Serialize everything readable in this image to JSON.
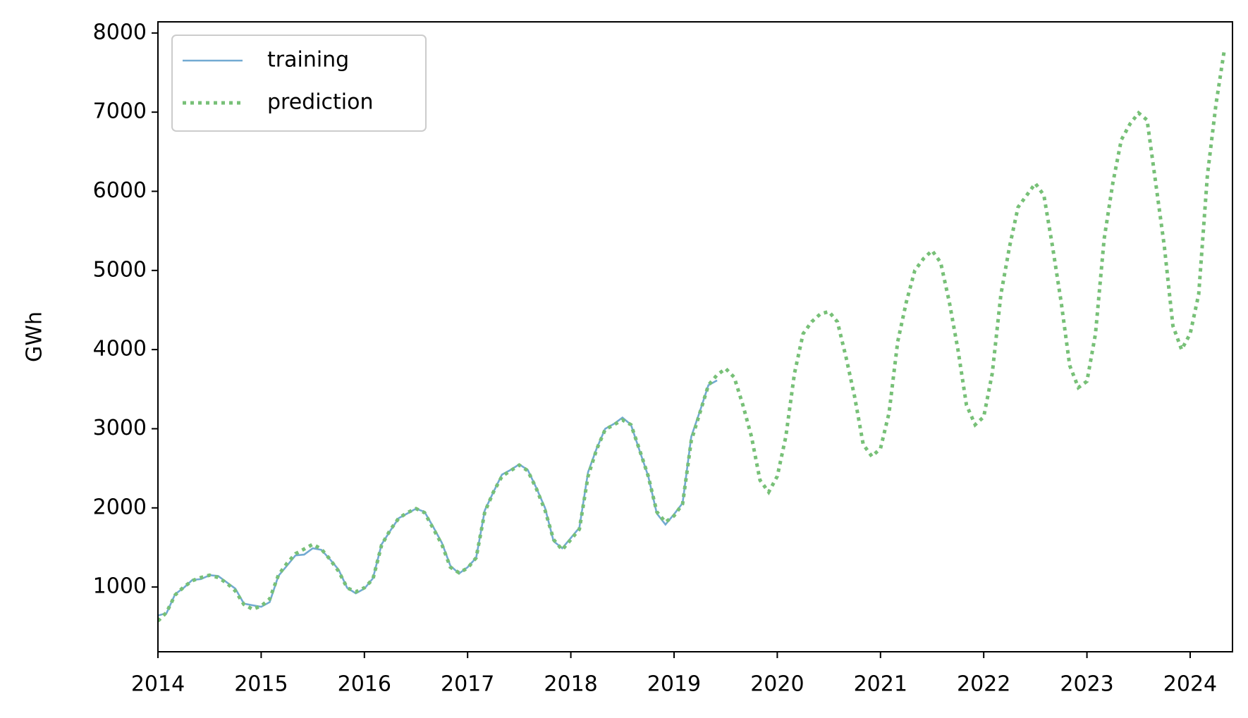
{
  "chart_data": {
    "type": "line",
    "y_label": "GWh",
    "legend": "upper left",
    "xlim": [
      2014,
      2024.41
    ],
    "xticks": [
      2014,
      2015,
      2016,
      2017,
      2018,
      2019,
      2020,
      2021,
      2022,
      2023,
      2024
    ],
    "ylim": [
      182,
      8141
    ],
    "yticks": [
      1000,
      2000,
      3000,
      4000,
      5000,
      6000,
      7000,
      8000
    ],
    "series": [
      {
        "name": "training",
        "color": "#72aad2",
        "dash": false,
        "x": [
          2014,
          2014.083,
          2014.167,
          2014.25,
          2014.333,
          2014.417,
          2014.5,
          2014.583,
          2014.667,
          2014.75,
          2014.833,
          2014.917,
          2015,
          2015.083,
          2015.167,
          2015.25,
          2015.333,
          2015.417,
          2015.5,
          2015.583,
          2015.667,
          2015.75,
          2015.833,
          2015.917,
          2016,
          2016.083,
          2016.167,
          2016.25,
          2016.333,
          2016.417,
          2016.5,
          2016.583,
          2016.667,
          2016.75,
          2016.833,
          2016.917,
          2017,
          2017.083,
          2017.167,
          2017.25,
          2017.333,
          2017.417,
          2017.5,
          2017.583,
          2017.667,
          2017.75,
          2017.833,
          2017.917,
          2018,
          2018.083,
          2018.167,
          2018.25,
          2018.333,
          2018.417,
          2018.5,
          2018.583,
          2018.667,
          2018.75,
          2018.833,
          2018.917,
          2019,
          2019.083,
          2019.167,
          2019.25,
          2019.333,
          2019.417
        ],
        "values": [
          640,
          670,
          910,
          990,
          1090,
          1100,
          1150,
          1140,
          1060,
          980,
          790,
          770,
          750,
          810,
          1140,
          1270,
          1400,
          1410,
          1490,
          1470,
          1350,
          1220,
          990,
          920,
          980,
          1110,
          1540,
          1710,
          1870,
          1930,
          1990,
          1950,
          1760,
          1560,
          1270,
          1170,
          1250,
          1370,
          1970,
          2200,
          2420,
          2480,
          2550,
          2480,
          2250,
          2000,
          1580,
          1490,
          1620,
          1750,
          2450,
          2750,
          3000,
          3060,
          3140,
          3050,
          2720,
          2400,
          1930,
          1790,
          1920,
          2060,
          2900,
          3220,
          3550,
          3610
        ]
      },
      {
        "name": "prediction",
        "color": "#77c077",
        "dash": true,
        "x": [
          2014,
          2014.083,
          2014.167,
          2014.25,
          2014.333,
          2014.417,
          2014.5,
          2014.583,
          2014.667,
          2014.75,
          2014.833,
          2014.917,
          2015,
          2015.083,
          2015.167,
          2015.25,
          2015.333,
          2015.417,
          2015.5,
          2015.583,
          2015.667,
          2015.75,
          2015.833,
          2015.917,
          2016,
          2016.083,
          2016.167,
          2016.25,
          2016.333,
          2016.417,
          2016.5,
          2016.583,
          2016.667,
          2016.75,
          2016.833,
          2016.917,
          2017,
          2017.083,
          2017.167,
          2017.25,
          2017.333,
          2017.417,
          2017.5,
          2017.583,
          2017.667,
          2017.75,
          2017.833,
          2017.917,
          2018,
          2018.083,
          2018.167,
          2018.25,
          2018.333,
          2018.417,
          2018.5,
          2018.583,
          2018.667,
          2018.75,
          2018.833,
          2018.917,
          2019,
          2019.083,
          2019.167,
          2019.25,
          2019.333,
          2019.417,
          2019.5,
          2019.583,
          2019.667,
          2019.75,
          2019.833,
          2019.917,
          2020,
          2020.083,
          2020.167,
          2020.25,
          2020.333,
          2020.417,
          2020.5,
          2020.583,
          2020.667,
          2020.75,
          2020.833,
          2020.917,
          2021,
          2021.083,
          2021.167,
          2021.25,
          2021.333,
          2021.417,
          2021.5,
          2021.583,
          2021.667,
          2021.75,
          2021.833,
          2021.917,
          2022,
          2022.083,
          2022.167,
          2022.25,
          2022.333,
          2022.417,
          2022.5,
          2022.583,
          2022.667,
          2022.75,
          2022.833,
          2022.917,
          2023,
          2023.083,
          2023.167,
          2023.25,
          2023.333,
          2023.417,
          2023.5,
          2023.583,
          2023.667,
          2023.75,
          2023.833,
          2023.917,
          2024,
          2024.083,
          2024.167,
          2024.25,
          2024.333
        ],
        "values": [
          570,
          680,
          900,
          1000,
          1080,
          1120,
          1150,
          1120,
          1050,
          950,
          780,
          720,
          760,
          850,
          1150,
          1300,
          1420,
          1480,
          1540,
          1480,
          1350,
          1200,
          990,
          940,
          990,
          1100,
          1530,
          1720,
          1870,
          1940,
          1990,
          1940,
          1740,
          1540,
          1250,
          1180,
          1240,
          1370,
          1950,
          2200,
          2400,
          2470,
          2540,
          2470,
          2240,
          1970,
          1600,
          1470,
          1600,
          1730,
          2400,
          2740,
          2990,
          3050,
          3110,
          3050,
          2730,
          2400,
          1950,
          1820,
          1900,
          2050,
          2850,
          3200,
          3550,
          3680,
          3760,
          3650,
          3300,
          2900,
          2350,
          2200,
          2400,
          2900,
          3700,
          4200,
          4350,
          4450,
          4480,
          4350,
          3900,
          3400,
          2800,
          2650,
          2750,
          3200,
          4100,
          4600,
          5000,
          5150,
          5250,
          5100,
          4600,
          4000,
          3300,
          3050,
          3150,
          3700,
          4700,
          5300,
          5800,
          5950,
          6100,
          5950,
          5300,
          4600,
          3800,
          3520,
          3600,
          4200,
          5400,
          6100,
          6650,
          6850,
          6990,
          6900,
          6100,
          5300,
          4300,
          4000,
          4200,
          4700,
          6200,
          7100,
          7800
        ]
      }
    ]
  }
}
